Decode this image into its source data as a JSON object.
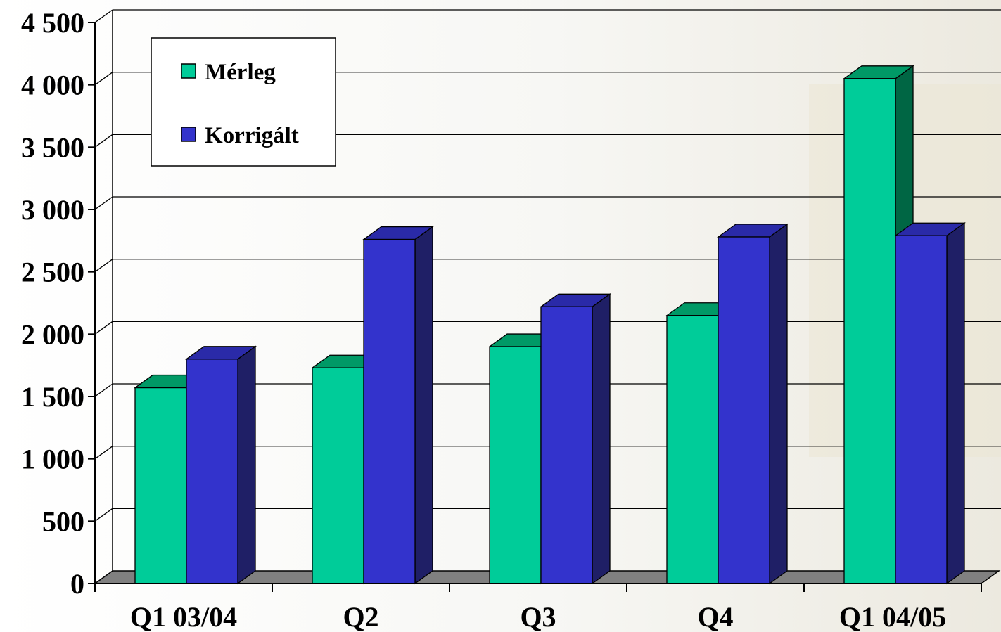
{
  "chart_data": {
    "type": "bar",
    "style": "3d-clustered-column",
    "categories": [
      "Q1 03/04",
      "Q2",
      "Q3",
      "Q4",
      "Q1 04/05"
    ],
    "series": [
      {
        "name": "Mérleg",
        "values": [
          1570,
          1730,
          1900,
          2150,
          4050
        ],
        "color": "#00CC99",
        "side_color": "#006644",
        "top_color": "#009966"
      },
      {
        "name": "Korrigált",
        "values": [
          1800,
          2760,
          2220,
          2780,
          2790
        ],
        "color": "#3333CC",
        "side_color": "#1F1F66",
        "top_color": "#2A2AA8"
      }
    ],
    "ylim": [
      0,
      4500
    ],
    "y_ticks": [
      0,
      500,
      1000,
      1500,
      2000,
      2500,
      3000,
      3500,
      4000,
      4500
    ],
    "y_tick_labels": [
      "0",
      "500",
      "1 000",
      "1 500",
      "2 000",
      "2 500",
      "3 000",
      "3 500",
      "4 000",
      "4 500"
    ],
    "grid": true,
    "legend_position": "top-left",
    "floor_color": "#808080",
    "xlabel": "",
    "ylabel": "",
    "title": ""
  }
}
